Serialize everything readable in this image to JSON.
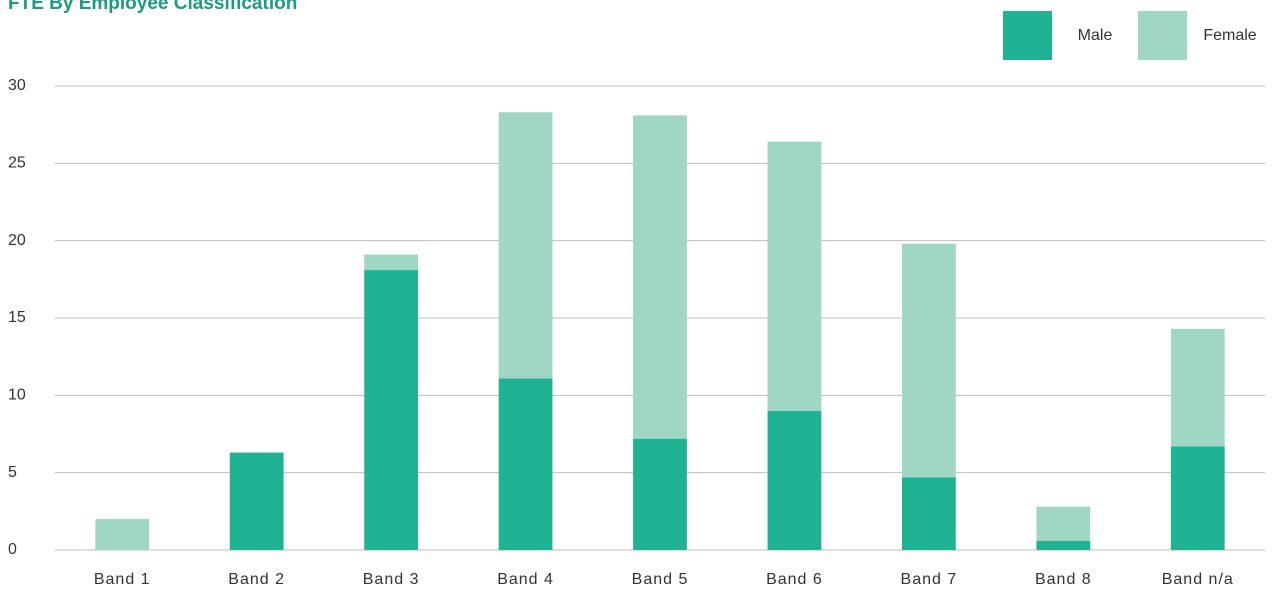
{
  "chart_data": {
    "type": "stacked_bar",
    "title": "FTE By Employee Classification",
    "categories": [
      "Band 1",
      "Band 2",
      "Band 3",
      "Band 4",
      "Band 5",
      "Band 6",
      "Band 7",
      "Band 8",
      "Band n/a"
    ],
    "series": [
      {
        "name": "Male",
        "color": "#1fb393",
        "values": [
          0,
          6.3,
          18.1,
          11.1,
          7.2,
          9.0,
          4.7,
          0.6,
          6.7
        ]
      },
      {
        "name": "Female",
        "color": "#a0d6c4",
        "values": [
          2.0,
          0,
          1.0,
          17.2,
          20.9,
          17.4,
          15.1,
          2.2,
          7.6
        ]
      }
    ],
    "ylim": [
      0,
      30
    ],
    "yticks": [
      0,
      5,
      10,
      15,
      20,
      25,
      30
    ],
    "grid": true,
    "legend": "top-right"
  }
}
